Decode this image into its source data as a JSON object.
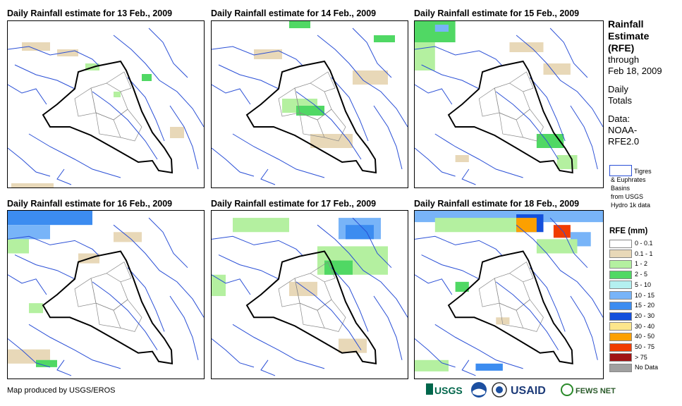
{
  "panels": [
    {
      "title": "Daily Rainfall estimate for 13 Feb., 2009"
    },
    {
      "title": "Daily Rainfall estimate for 14 Feb., 2009"
    },
    {
      "title": "Daily Rainfall estimate for 15 Feb., 2009"
    },
    {
      "title": "Daily Rainfall estimate for 16 Feb., 2009"
    },
    {
      "title": "Daily Rainfall estimate for 17 Feb., 2009"
    },
    {
      "title": "Daily Rainfall estimate for 18 Feb., 2009"
    }
  ],
  "legend": {
    "title_line1": "Rainfall",
    "title_line2": "Estimate",
    "title_line3": "(RFE)",
    "through_label": "through",
    "through_date": "Feb 18, 2009",
    "totals_line1": "Daily",
    "totals_line2": "Totals",
    "data_label": "Data:",
    "data_src1": "NOAA-",
    "data_src2": "RFE2.0",
    "basin_line1": "Tigres",
    "basin_line2": "& Euphrates",
    "basin_line3": "Basins",
    "basin_line4": "from USGS",
    "basin_line5": "Hydro 1k data",
    "rfe_head": "RFE (mm)",
    "classes": [
      {
        "label": "0 - 0.1",
        "color": "#ffffff"
      },
      {
        "label": "0.1 - 1",
        "color": "#e8d8b8"
      },
      {
        "label": "1 - 2",
        "color": "#b4f0a0"
      },
      {
        "label": "2 - 5",
        "color": "#50d864"
      },
      {
        "label": "5 - 10",
        "color": "#b4f0f0"
      },
      {
        "label": "10 - 15",
        "color": "#78b4f8"
      },
      {
        "label": "15 - 20",
        "color": "#3c8cf0"
      },
      {
        "label": "20 - 30",
        "color": "#1450dc"
      },
      {
        "label": "30 - 40",
        "color": "#fce68c"
      },
      {
        "label": "40 - 50",
        "color": "#fca000"
      },
      {
        "label": "50 - 75",
        "color": "#f03c00"
      },
      {
        "label": "> 75",
        "color": "#a01414"
      },
      {
        "label": "No Data",
        "color": "#a0a0a0"
      }
    ]
  },
  "footer": {
    "credit": "Map produced by USGS/EROS",
    "logos": [
      "USGS",
      "NOAA",
      "USAID",
      "FEWS NET"
    ]
  },
  "colors": {
    "border": "#000000",
    "rivers": "#2a4fd6",
    "provinces": "#888888"
  }
}
